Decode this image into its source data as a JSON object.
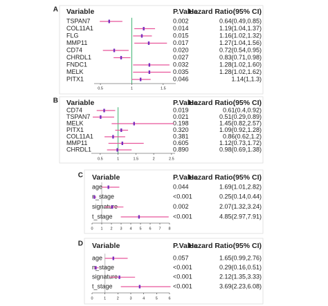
{
  "chart_data": [
    {
      "type": "forest",
      "label": "A",
      "columns": [
        "Variable",
        "P.Value",
        "Hazard Ratio(95% CI)"
      ],
      "categories": [
        "TSPAN7",
        "COL11A1",
        "FLG",
        "MMP11",
        "CD74",
        "CHRDL1",
        "FNDC1",
        "MELK",
        "PITX1"
      ],
      "p_values": [
        "0.002",
        "0.014",
        "0.015",
        "0.017",
        "0.020",
        "0.027",
        "0.032",
        "0.035",
        "0.046"
      ],
      "values": [
        0.64,
        1.19,
        1.16,
        1.27,
        0.72,
        0.83,
        1.28,
        1.28,
        1.14
      ],
      "lower": [
        0.49,
        1.04,
        1.02,
        1.04,
        0.54,
        0.71,
        1.02,
        1.02,
        1
      ],
      "upper": [
        0.85,
        1.37,
        1.32,
        1.56,
        0.95,
        0.98,
        1.6,
        1.62,
        1.3
      ],
      "value_labels": [
        "0.64(0.49,0.85)",
        "1.19(1.04,1.37)",
        "1.16(1.02,1.32)",
        "1.27(1.04,1.56)",
        "0.72(0.54,0.95)",
        "0.83(0.71,0.98)",
        "1.28(1.02,1.60)",
        "1.28(1.02,1.62)",
        "1.14(1,1.3)"
      ],
      "xlim": [
        0.4,
        1.7
      ],
      "xticks": [
        0.5,
        1,
        1.5
      ],
      "reference": 1,
      "point_color": "#7b2fbe",
      "line_color": "#e8559a",
      "reference_color": "#3cb371"
    },
    {
      "type": "forest",
      "label": "B",
      "columns": [
        "Variable",
        "P.Value",
        "Hazard Ratio(95% CI)"
      ],
      "categories": [
        "CD74",
        "TSPAN7",
        "MELK",
        "PITX1",
        "COL11A1",
        "MMP11",
        "CHRDL1"
      ],
      "p_values": [
        "0.019",
        "0.021",
        "0.198",
        "0.320",
        "0.381",
        "0.605",
        "0.890"
      ],
      "values": [
        0.61,
        0.51,
        1.45,
        1.09,
        0.86,
        1.12,
        0.98
      ],
      "lower": [
        0.4,
        0.29,
        0.82,
        0.92,
        0.62,
        0.73,
        0.69
      ],
      "upper": [
        0.92,
        0.89,
        2.57,
        1.28,
        1.2,
        1.72,
        1.38
      ],
      "value_labels": [
        "0.61(0.4,0.92)",
        "0.51(0.29,0.89)",
        "1.45(0.82,2.57)",
        "1.09(0.92,1.28)",
        "0.86(0.62,1.2)",
        "1.12(0.73,1.72)",
        "0.98(0.69,1.38)"
      ],
      "xlim": [
        0.25,
        2.6
      ],
      "xticks": [
        0.5,
        1,
        1.5,
        2,
        2.5
      ],
      "reference": 1,
      "point_color": "#7b2fbe",
      "line_color": "#e8559a",
      "reference_color": "#3cb371"
    },
    {
      "type": "forest",
      "label": "C",
      "columns": [
        "Variable",
        "P.Value",
        "Hazard Ratio(95% CI)"
      ],
      "categories": [
        "age",
        "n_stage",
        "signature",
        "t_stage"
      ],
      "p_values": [
        "0.044",
        "<0.001",
        "0.002",
        "<0.001"
      ],
      "values": [
        1.69,
        0.25,
        2.07,
        4.85
      ],
      "lower": [
        1.01,
        0.14,
        1.32,
        2.97
      ],
      "upper": [
        2.82,
        0.44,
        3.24,
        7.91
      ],
      "value_labels": [
        "1.69(1.01,2.82)",
        "0.25(0.14,0.44)",
        "2.07(1.32,3.24)",
        "4.85(2.97,7.91)"
      ],
      "xlim": [
        0,
        8
      ],
      "xticks": [
        0,
        1,
        2,
        3,
        4,
        5,
        6,
        7,
        8
      ],
      "reference": 1,
      "point_color": "#7b2fbe",
      "line_color": "#e8559a",
      "reference_color": "#bbbbbb"
    },
    {
      "type": "forest",
      "label": "D",
      "columns": [
        "Variable",
        "P.Value",
        "Hazard Ratio(95% CI)"
      ],
      "categories": [
        "age",
        "n_stage",
        "signature",
        "t_stage"
      ],
      "p_values": [
        "0.057",
        "<0.001",
        "<0.001",
        "<0.001"
      ],
      "values": [
        1.65,
        0.29,
        2.12,
        3.69
      ],
      "lower": [
        0.99,
        0.16,
        1.35,
        2.23
      ],
      "upper": [
        2.76,
        0.51,
        3.33,
        6.08
      ],
      "value_labels": [
        "1.65(0.99,2.76)",
        "0.29(0.16,0.51)",
        "2.12(1.35,3.33)",
        "3.69(2.23,6.08)"
      ],
      "xlim": [
        0,
        6
      ],
      "xticks": [
        0,
        1,
        2,
        3,
        4,
        5,
        6
      ],
      "reference": 1,
      "point_color": "#7b2fbe",
      "line_color": "#e8559a",
      "reference_color": "#bbbbbb"
    }
  ]
}
